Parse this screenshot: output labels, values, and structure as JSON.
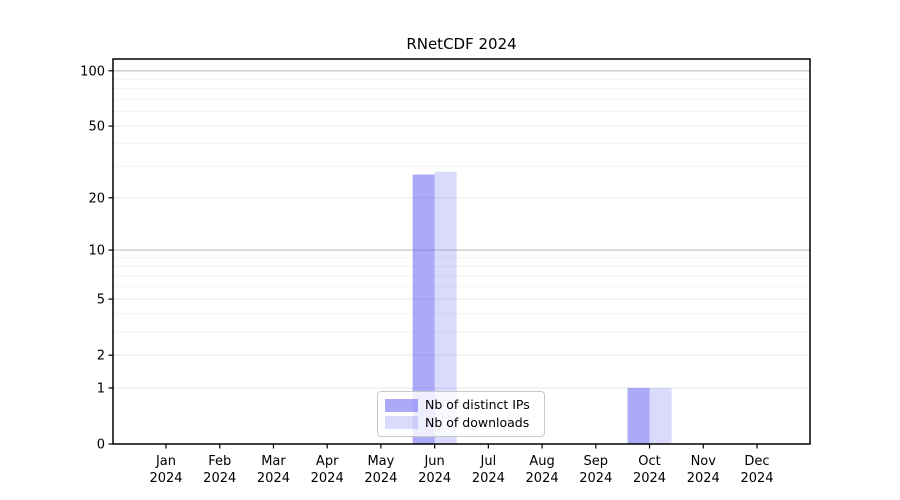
{
  "chart_data": {
    "type": "bar",
    "title": "RNetCDF 2024",
    "categories": [
      "Jan 2024",
      "Feb 2024",
      "Mar 2024",
      "Apr 2024",
      "May 2024",
      "Jun 2024",
      "Jul 2024",
      "Aug 2024",
      "Sep 2024",
      "Oct 2024",
      "Nov 2024",
      "Dec 2024"
    ],
    "series": [
      {
        "name": "Nb of distinct IPs",
        "color": "rgba(85,85,243,0.5)",
        "values": [
          0,
          0,
          0,
          0,
          0,
          27,
          0,
          0,
          0,
          1,
          0,
          0
        ]
      },
      {
        "name": "Nb of downloads",
        "color": "rgba(85,85,243,0.22)",
        "values": [
          0,
          0,
          0,
          0,
          0,
          28,
          0,
          0,
          0,
          1,
          0,
          0
        ]
      }
    ],
    "y_axis": {
      "scale": "log1p",
      "labeled_ticks": [
        0,
        1,
        2,
        5,
        10,
        20,
        50,
        100
      ],
      "dark_grid_ticks": [
        10,
        100
      ],
      "minor_grid_ticks": [
        3,
        4,
        6,
        7,
        8,
        9,
        30,
        40,
        60,
        70,
        80,
        90
      ],
      "ylim": [
        0,
        116
      ]
    },
    "xlabel": "",
    "ylabel": "",
    "grid": true,
    "legend_position": "lower center",
    "colors": {
      "grid_major_dark": "#c9c9c9",
      "grid_labeled_light": "#e9e9e9",
      "grid_minor": "#f3f3f3",
      "spine": "#000000",
      "legend_border": "#c9c9c9",
      "text": "#000000"
    }
  }
}
